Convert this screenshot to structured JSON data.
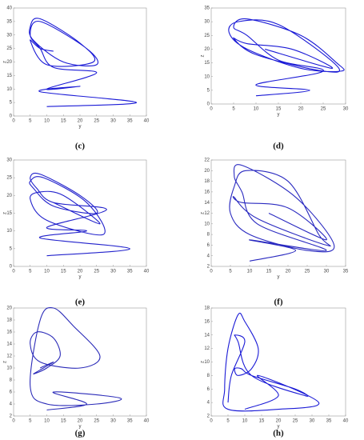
{
  "chart_data": [
    {
      "type": "line",
      "caption": "(c)",
      "xlabel": "y",
      "ylabel": "z",
      "xlim": [
        0,
        40
      ],
      "xticks": [
        0,
        5,
        10,
        15,
        20,
        25,
        30,
        35,
        40
      ],
      "ylim": [
        0,
        40
      ],
      "yticks": [
        0,
        5,
        10,
        15,
        20,
        25,
        30,
        35,
        40
      ],
      "series": [
        {
          "color": "#1a1ad6",
          "x": [
            10,
            37,
            8,
            20,
            10,
            25,
            12,
            8,
            5,
            8,
            22,
            25,
            15,
            6,
            5,
            8,
            20,
            24,
            10,
            5,
            8,
            12
          ],
          "values": [
            3.5,
            5,
            9,
            11,
            10,
            16,
            18,
            25,
            30,
            35,
            25,
            19,
            20,
            28,
            33,
            36,
            27,
            20,
            19,
            28,
            25,
            24
          ]
        }
      ]
    },
    {
      "type": "line",
      "caption": "(d)",
      "xlabel": "y",
      "ylabel": "z",
      "xlim": [
        0,
        30
      ],
      "xticks": [
        0,
        5,
        10,
        15,
        20,
        25,
        30
      ],
      "ylim": [
        0,
        35
      ],
      "yticks": [
        0,
        5,
        10,
        15,
        20,
        25,
        30,
        35
      ],
      "series": [
        {
          "color": "#1a1ad6",
          "x": [
            10,
            22,
            10,
            25,
            15,
            8,
            5,
            8,
            20,
            28,
            29,
            20,
            8,
            4,
            6,
            15,
            28,
            25,
            10,
            5,
            8,
            18,
            27,
            12
          ],
          "values": [
            3,
            5,
            7,
            12,
            16,
            25,
            28,
            31,
            25,
            15,
            12,
            13,
            20,
            26,
            30,
            29,
            14,
            12,
            18,
            24,
            22,
            20,
            13,
            20
          ]
        }
      ]
    },
    {
      "type": "line",
      "caption": "(e)",
      "xlabel": "y",
      "ylabel": "z",
      "xlim": [
        0,
        40
      ],
      "xticks": [
        0,
        5,
        10,
        15,
        20,
        25,
        30,
        35,
        40
      ],
      "ylim": [
        0,
        30
      ],
      "yticks": [
        0,
        5,
        10,
        15,
        20,
        25,
        30
      ],
      "series": [
        {
          "color": "#2222cc",
          "x": [
            10,
            35,
            8,
            22,
            10,
            28,
            12,
            7,
            5,
            8,
            20,
            25,
            12,
            6,
            5,
            9,
            22,
            27,
            10,
            5,
            8,
            15,
            26,
            12
          ],
          "values": [
            3,
            5,
            8,
            10,
            11,
            16,
            18,
            22,
            25,
            26,
            20,
            15,
            17,
            22,
            24,
            25,
            18,
            9,
            13,
            19,
            21,
            20,
            12,
            18
          ]
        }
      ]
    },
    {
      "type": "line",
      "caption": "(f)",
      "xlabel": "y",
      "ylabel": "z",
      "xlim": [
        0,
        35
      ],
      "xticks": [
        0,
        5,
        10,
        15,
        20,
        25,
        30,
        35
      ],
      "ylim": [
        2,
        22
      ],
      "yticks": [
        2,
        4,
        6,
        8,
        10,
        12,
        14,
        16,
        18,
        20,
        22
      ],
      "series": [
        {
          "color": "#2a2ac0",
          "x": [
            10,
            22,
            10,
            30,
            12,
            8,
            6,
            8,
            22,
            32,
            25,
            10,
            5,
            6,
            9,
            20,
            28,
            30,
            12,
            6,
            8,
            20,
            30,
            15
          ],
          "values": [
            3,
            5,
            7,
            5,
            10,
            16,
            19,
            21,
            15,
            6,
            5,
            8,
            12,
            17,
            20,
            18,
            8,
            6,
            11,
            15,
            14,
            13,
            7,
            12
          ]
        }
      ]
    },
    {
      "type": "line",
      "caption": "(g)",
      "xlabel": "y",
      "ylabel": "z",
      "xlim": [
        0,
        40
      ],
      "xticks": [
        0,
        5,
        10,
        15,
        20,
        25,
        30,
        35,
        40
      ],
      "ylim": [
        2,
        20
      ],
      "yticks": [
        2,
        4,
        6,
        8,
        10,
        12,
        14,
        16,
        18,
        20
      ],
      "series": [
        {
          "color": "#2a2ab8",
          "x": [
            10,
            22,
            12,
            32,
            25,
            10,
            5,
            8,
            12,
            18,
            26,
            20,
            8,
            5,
            7,
            12,
            14,
            10,
            6,
            9,
            12,
            8
          ],
          "values": [
            3,
            4,
            6,
            5,
            4,
            4,
            7,
            18,
            20,
            17,
            12,
            10,
            11,
            14,
            16,
            15,
            12,
            10,
            9,
            10,
            11,
            10
          ]
        }
      ]
    },
    {
      "type": "line",
      "caption": "(h)",
      "xlabel": "y",
      "ylabel": "z",
      "xlim": [
        0,
        40
      ],
      "xticks": [
        0,
        5,
        10,
        15,
        20,
        25,
        30,
        35,
        40
      ],
      "ylim": [
        2,
        18
      ],
      "yticks": [
        2,
        4,
        6,
        8,
        10,
        12,
        14,
        16,
        18
      ],
      "series": [
        {
          "color": "#1a1ad6",
          "x": [
            10,
            20,
            14,
            32,
            20,
            5,
            4,
            5,
            8,
            10,
            14,
            12,
            8,
            7,
            9,
            12,
            25,
            28,
            12,
            8,
            7,
            10,
            6,
            5
          ],
          "values": [
            3,
            5,
            8,
            4,
            3,
            3,
            6,
            12,
            17,
            16,
            12,
            9,
            8,
            9,
            9,
            8,
            6,
            5,
            8,
            13,
            14,
            13,
            8,
            4
          ]
        }
      ]
    }
  ]
}
